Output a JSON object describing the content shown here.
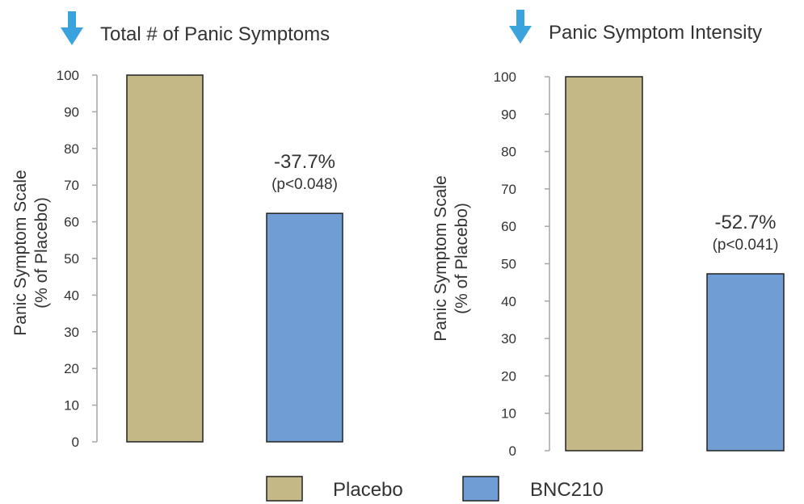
{
  "chart_data": [
    {
      "type": "bar",
      "title": "Total # of Panic Symptoms",
      "ylabel_line1": "Panic Symptom Scale",
      "ylabel_line2": "(% of Placebo)",
      "ylim": [
        0,
        100
      ],
      "yticks": [
        "0",
        "10",
        "20",
        "30",
        "40",
        "50",
        "60",
        "70",
        "80",
        "90",
        "100"
      ],
      "grid": false,
      "categories": [
        "Placebo",
        "BNC210"
      ],
      "values": [
        100,
        62.3
      ],
      "annotation": {
        "change": "-37.7%",
        "p": "(p<0.048)",
        "target": "BNC210"
      }
    },
    {
      "type": "bar",
      "title": "Panic Symptom Intensity",
      "ylabel_line1": "Panic Symptom Scale",
      "ylabel_line2": "(% of Placebo)",
      "ylim": [
        0,
        100
      ],
      "yticks": [
        "0",
        "10",
        "20",
        "30",
        "40",
        "50",
        "60",
        "70",
        "80",
        "90",
        "100"
      ],
      "grid": false,
      "categories": [
        "Placebo",
        "BNC210"
      ],
      "values": [
        100,
        47.3
      ],
      "annotation": {
        "change": "-52.7%",
        "p": "(p<0.041)",
        "target": "BNC210"
      }
    }
  ],
  "legend": {
    "placement": "bottom-center",
    "items": [
      {
        "label": "Placebo",
        "color": "#c4b886"
      },
      {
        "label": "BNC210",
        "color": "#6f9dd4"
      }
    ]
  },
  "colors": {
    "placebo": "#c4b886",
    "bnc210": "#6f9dd4",
    "arrow": "#3aa3de",
    "axis": "#a6a6a6",
    "bar_edge": "#222222"
  }
}
